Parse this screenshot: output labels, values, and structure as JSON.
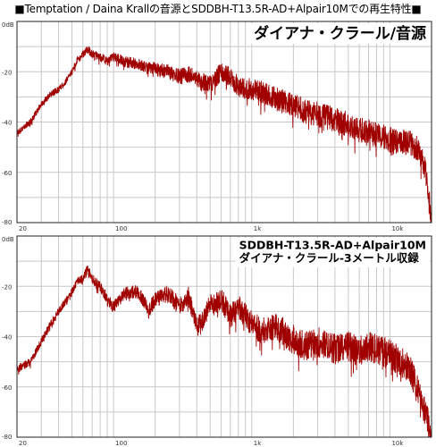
{
  "page": {
    "header": "■Temptation / Daina Krallの音源とSDDBH-T13.5R-AD+Alpair10Mでの再生特性■"
  },
  "chart_data": [
    {
      "type": "line",
      "annotation": [
        "ダイアナ・クラール/音源"
      ],
      "xscale": "log",
      "xlim": [
        20,
        20000
      ],
      "ylim": [
        -80,
        0
      ],
      "grid": true,
      "x_ticks": [
        20,
        100,
        1000,
        10000
      ],
      "x_tick_labels": [
        "20",
        "100",
        "1k",
        "10k"
      ],
      "y_ticks": [
        0,
        -20,
        -40,
        -60,
        -80
      ],
      "y_tick_labels": [
        "0dB",
        "-20",
        "-40",
        "-60",
        "-80"
      ],
      "series": [
        {
          "color": "#a00000",
          "x": [
            20,
            25,
            30,
            35,
            40,
            45,
            50,
            55,
            60,
            65,
            70,
            80,
            90,
            100,
            120,
            150,
            180,
            200,
            250,
            300,
            350,
            400,
            450,
            500,
            600,
            700,
            800,
            1000,
            1200,
            1500,
            2000,
            2500,
            3000,
            4000,
            5000,
            6000,
            7000,
            8000,
            10000,
            12000,
            14000,
            16000,
            18000,
            20000
          ],
          "y": [
            -44,
            -40,
            -33,
            -29,
            -27,
            -24,
            -20,
            -15,
            -13,
            -11,
            -13,
            -14,
            -16,
            -14,
            -16,
            -17,
            -18,
            -19,
            -20,
            -22,
            -21,
            -23,
            -24,
            -25,
            -20,
            -22,
            -26,
            -27,
            -28,
            -31,
            -33,
            -36,
            -37,
            -39,
            -41,
            -43,
            -44,
            -45,
            -47,
            -48,
            -48,
            -51,
            -58,
            -78
          ],
          "noise": 5
        }
      ]
    },
    {
      "type": "line",
      "annotation": [
        "SDDBH-T13.5R-AD+Alpair10M",
        "ダイアナ・クラール-3メートル収録"
      ],
      "xscale": "log",
      "xlim": [
        20,
        20000
      ],
      "ylim": [
        -80,
        0
      ],
      "grid": true,
      "x_ticks": [
        20,
        100,
        1000,
        10000
      ],
      "x_tick_labels": [
        "20",
        "100",
        "1k",
        "10k"
      ],
      "y_ticks": [
        0,
        -20,
        -40,
        -60,
        -80
      ],
      "y_tick_labels": [
        "0dB",
        "-20",
        "-40",
        "-60",
        "-80"
      ],
      "series": [
        {
          "color": "#a00000",
          "x": [
            20,
            25,
            30,
            35,
            40,
            45,
            50,
            55,
            60,
            65,
            70,
            80,
            90,
            100,
            120,
            150,
            180,
            200,
            250,
            300,
            350,
            400,
            450,
            500,
            600,
            700,
            800,
            1000,
            1200,
            1500,
            2000,
            2500,
            3000,
            4000,
            5000,
            6000,
            7000,
            8000,
            10000,
            12000,
            14000,
            16000,
            18000,
            20000
          ],
          "y": [
            -53,
            -50,
            -42,
            -35,
            -30,
            -26,
            -22,
            -18,
            -17,
            -13,
            -17,
            -20,
            -25,
            -28,
            -23,
            -22,
            -30,
            -25,
            -23,
            -28,
            -24,
            -36,
            -33,
            -27,
            -25,
            -32,
            -28,
            -35,
            -38,
            -36,
            -41,
            -44,
            -42,
            -45,
            -44,
            -46,
            -44,
            -45,
            -47,
            -50,
            -53,
            -62,
            -70,
            -80
          ],
          "noise": 6
        }
      ]
    }
  ]
}
